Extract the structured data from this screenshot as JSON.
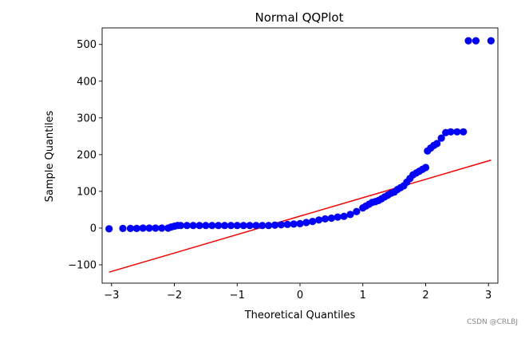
{
  "chart_data": {
    "type": "scatter",
    "title": "Normal QQPlot",
    "xlabel": "Theoretical Quantiles",
    "ylabel": "Sample Quantiles",
    "xlim": [
      -3.15,
      3.15
    ],
    "ylim": [
      -150,
      545
    ],
    "x_ticks": [
      -3,
      -2,
      -1,
      0,
      1,
      2,
      3
    ],
    "x_tick_labels": [
      "−3",
      "−2",
      "−1",
      "0",
      "1",
      "2",
      "3"
    ],
    "y_ticks": [
      -100,
      0,
      100,
      200,
      300,
      400,
      500
    ],
    "y_tick_labels": [
      "−100",
      "0",
      "100",
      "200",
      "300",
      "400",
      "500"
    ],
    "grid": false,
    "colors": {
      "points": "#0000ff",
      "line": "#ff0000"
    },
    "series": [
      {
        "kind": "points",
        "x": [
          -3.04,
          -2.82,
          -2.7,
          -2.6,
          -2.5,
          -2.4,
          -2.3,
          -2.2,
          -2.1,
          -2.05,
          -2.0,
          -1.95,
          -1.9,
          -1.8,
          -1.7,
          -1.6,
          -1.5,
          -1.4,
          -1.3,
          -1.2,
          -1.1,
          -1.0,
          -0.9,
          -0.8,
          -0.7,
          -0.6,
          -0.5,
          -0.4,
          -0.3,
          -0.2,
          -0.1,
          0.0,
          0.1,
          0.2,
          0.3,
          0.4,
          0.5,
          0.6,
          0.7,
          0.8,
          0.9,
          1.0,
          1.05,
          1.1,
          1.15,
          1.2,
          1.25,
          1.3,
          1.35,
          1.4,
          1.45,
          1.5,
          1.55,
          1.6,
          1.65,
          1.7,
          1.75,
          1.8,
          1.85,
          1.9,
          1.95,
          2.0,
          2.03,
          2.08,
          2.13,
          2.18,
          2.25,
          2.32,
          2.4,
          2.5,
          2.6,
          2.68,
          2.8,
          3.04
        ],
        "y": [
          -2,
          -1,
          -1,
          -1,
          0,
          0,
          0,
          0,
          0,
          3,
          5,
          7,
          7,
          7,
          7,
          7,
          7,
          7,
          7,
          7,
          7,
          7,
          7,
          7,
          7,
          7,
          7,
          8,
          9,
          10,
          11,
          12,
          15,
          18,
          22,
          25,
          27,
          30,
          32,
          37,
          45,
          55,
          60,
          65,
          70,
          72,
          75,
          80,
          85,
          90,
          95,
          98,
          105,
          110,
          115,
          125,
          135,
          145,
          150,
          155,
          160,
          165,
          210,
          218,
          225,
          230,
          245,
          260,
          262,
          262,
          262,
          510,
          510,
          510
        ]
      },
      {
        "kind": "line",
        "x": [
          -3.04,
          3.04
        ],
        "y": [
          -120,
          185
        ]
      }
    ]
  },
  "watermark": "CSDN @CRLBJ"
}
